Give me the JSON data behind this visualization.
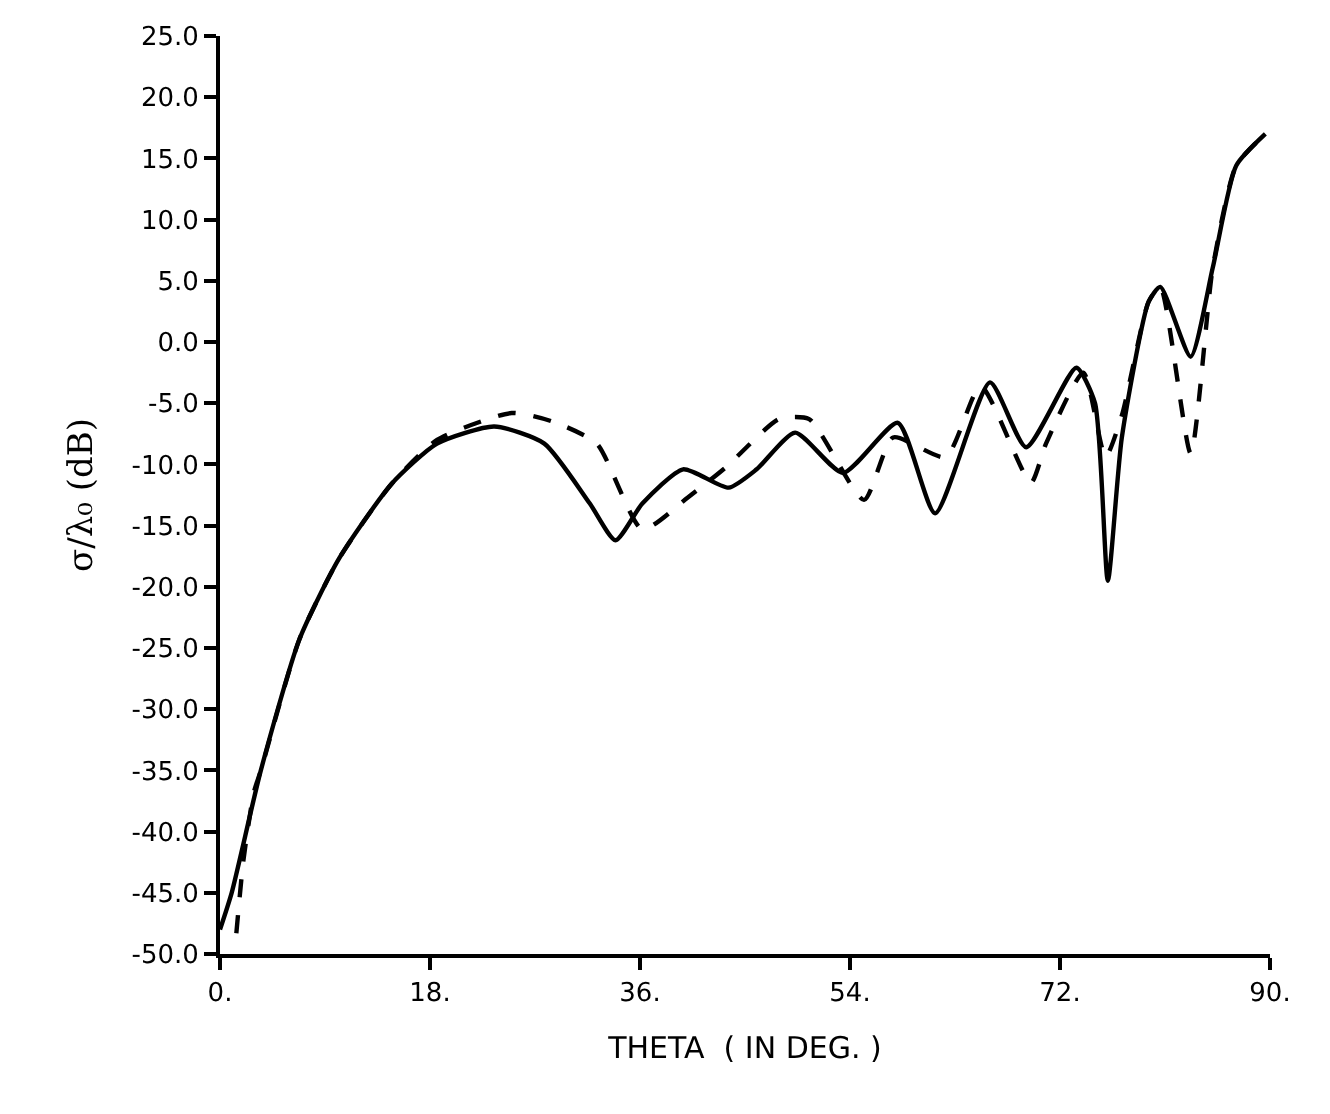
{
  "chart_data": {
    "type": "line",
    "xlabel": "THETA  ( IN DEG. )",
    "ylabel": "σ/λ₀ (dB)",
    "xlim": [
      0,
      90
    ],
    "ylim": [
      -50,
      25
    ],
    "xticks": [
      {
        "value": 0,
        "label": "0."
      },
      {
        "value": 18,
        "label": "18."
      },
      {
        "value": 36,
        "label": "36."
      },
      {
        "value": 54,
        "label": "54."
      },
      {
        "value": 72,
        "label": "72."
      },
      {
        "value": 90,
        "label": "90."
      }
    ],
    "yticks": [
      {
        "value": 25,
        "label": "25.0"
      },
      {
        "value": 20,
        "label": "20.0"
      },
      {
        "value": 15,
        "label": "15.0"
      },
      {
        "value": 10,
        "label": "10.0"
      },
      {
        "value": 5,
        "label": "5.0"
      },
      {
        "value": 0,
        "label": "0.0"
      },
      {
        "value": -5,
        "label": "-5.0"
      },
      {
        "value": -10,
        "label": "-10.0"
      },
      {
        "value": -15,
        "label": "-15.0"
      },
      {
        "value": -20,
        "label": "-20.0"
      },
      {
        "value": -25,
        "label": "-25.0"
      },
      {
        "value": -30,
        "label": "-30.0"
      },
      {
        "value": -35,
        "label": "-35.0"
      },
      {
        "value": -40,
        "label": "-40.0"
      },
      {
        "value": -45,
        "label": "-45.0"
      },
      {
        "value": -50,
        "label": "-50.0"
      }
    ],
    "marker": "none",
    "series": [
      {
        "color": "#000000",
        "line_style": "solid",
        "x": [
          0,
          1,
          3.5,
          6.8,
          10.2,
          14.7,
          18.6,
          23.5,
          27.8,
          31.7,
          33.9,
          36.2,
          39.7,
          43.6,
          46,
          49.3,
          53.4,
          58.1,
          61.3,
          66,
          69.1,
          73.4,
          75,
          76.1,
          77.3,
          79.6,
          80.6,
          83.2,
          85.1,
          87.1,
          89.6
        ],
        "values": [
          -48,
          -45,
          -35,
          -24.3,
          -17.7,
          -11.6,
          -8.3,
          -6.9,
          -8.3,
          -13.2,
          -16.2,
          -13.2,
          -10.4,
          -11.9,
          -10.4,
          -7.4,
          -10.7,
          -6.6,
          -14,
          -3.3,
          -8.6,
          -2.1,
          -5,
          -19.5,
          -7.8,
          3.3,
          4.5,
          -1.2,
          6.1,
          14.4,
          17
        ]
      },
      {
        "color": "#000000",
        "line_style": "dashed",
        "x": [
          1.4,
          2,
          2.9,
          3.5,
          6.8,
          10.2,
          14.7,
          18.6,
          25,
          28.5,
          32.3,
          36.2,
          40.1,
          43.4,
          47.9,
          50.5,
          55.2,
          57.7,
          62.2,
          65.2,
          69.5,
          70.8,
          74,
          75.9,
          77.3,
          79.6,
          80.6,
          83.2,
          85.1,
          87.1,
          89.6
        ],
        "values": [
          -48.3,
          -42.4,
          -36.8,
          -35,
          -24.3,
          -17.7,
          -11.6,
          -8,
          -5.8,
          -6.5,
          -8.3,
          -15.3,
          -12.7,
          -10.2,
          -6.3,
          -6.3,
          -12.9,
          -7.8,
          -9.4,
          -3.6,
          -11.5,
          -8.3,
          -2.5,
          -9.4,
          -6,
          3.3,
          4.5,
          -9.1,
          6.1,
          14.4,
          17
        ]
      }
    ]
  }
}
